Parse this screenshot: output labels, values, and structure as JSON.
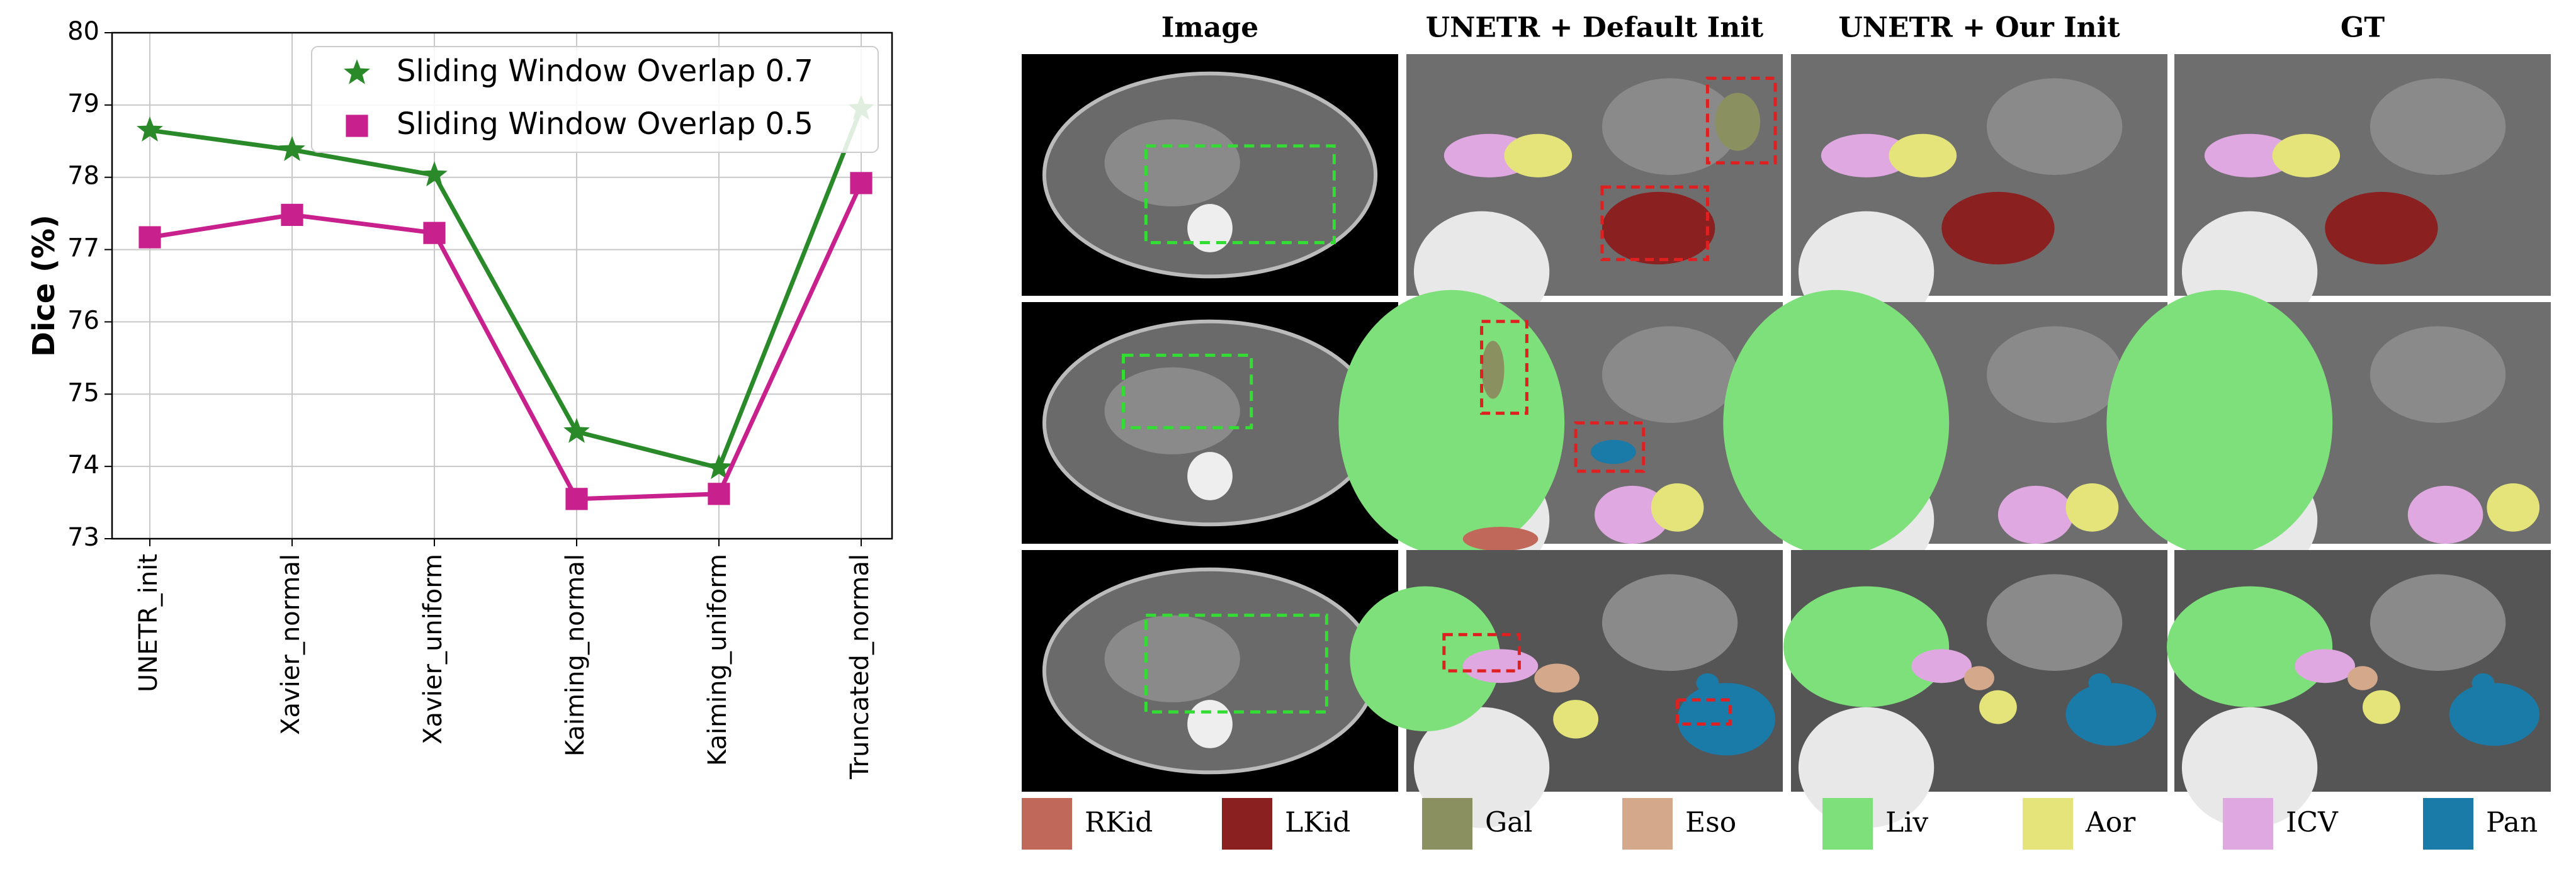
{
  "chart_data": {
    "type": "line",
    "ylabel": "Dice (%)",
    "categories": [
      "UNETR_init",
      "Xavier_normal",
      "Xavier_uniform",
      "Kaiming_normal",
      "Kaiming_uniform",
      "Truncated_normal"
    ],
    "series": [
      {
        "name": "Sliding Window Overlap 0.7",
        "color": "#2a8a2a",
        "marker": "star",
        "values": [
          78.65,
          78.38,
          78.03,
          74.48,
          73.98,
          78.95
        ]
      },
      {
        "name": "Sliding Window Overlap 0.5",
        "color": "#c8208c",
        "marker": "square",
        "values": [
          77.17,
          77.48,
          77.23,
          73.55,
          73.62,
          77.92
        ]
      }
    ],
    "ylim": [
      73,
      80
    ],
    "yticks": [
      73,
      74,
      75,
      76,
      77,
      78,
      79,
      80
    ],
    "grid": true,
    "legend": "upper right"
  },
  "figure": {
    "columns": [
      "Image",
      "UNETR + Default Init",
      "UNETR + Our Init",
      "GT"
    ],
    "legend": [
      {
        "label": "RKid",
        "color": "#c0695a"
      },
      {
        "label": "LKid",
        "color": "#8b2020"
      },
      {
        "label": "Gal",
        "color": "#8b9060"
      },
      {
        "label": "Eso",
        "color": "#d4a88a"
      },
      {
        "label": "Liv",
        "color": "#7ee07a"
      },
      {
        "label": "Aor",
        "color": "#e4e47a"
      },
      {
        "label": "ICV",
        "color": "#e0a8e0"
      },
      {
        "label": "Pan",
        "color": "#1a7aa8"
      }
    ]
  }
}
